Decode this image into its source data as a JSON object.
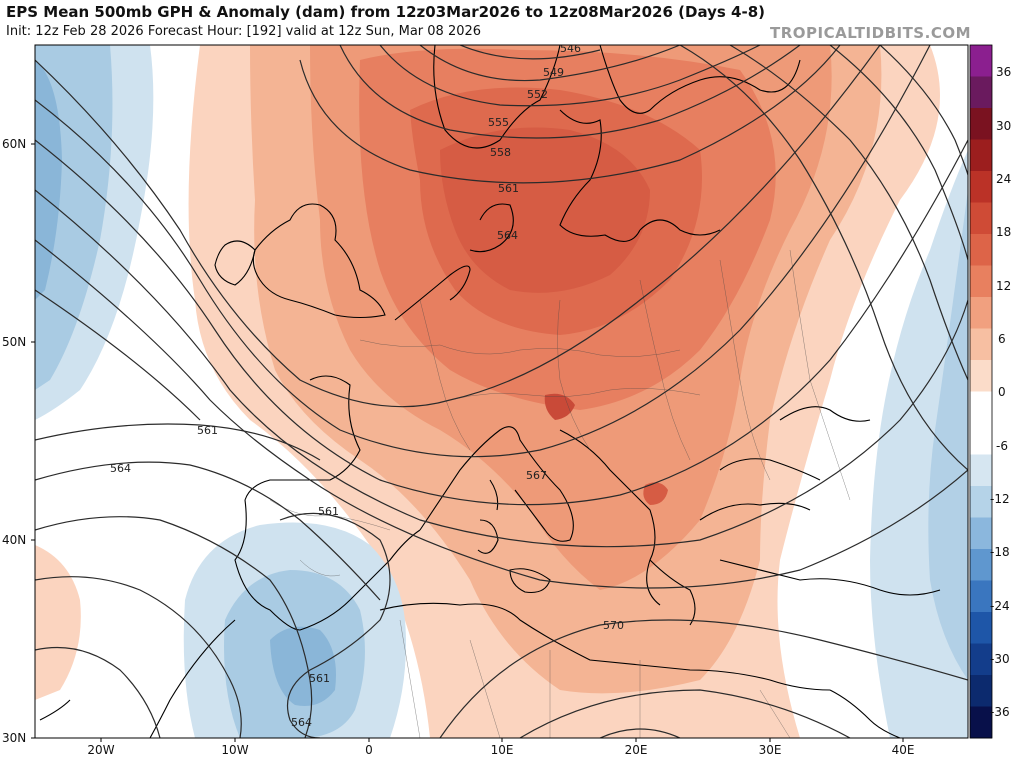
{
  "header": {
    "title": "EPS Mean 500mb GPH & Anomaly (dam) from 12z03Mar2026 to 12z08Mar2026 (Days 4-8)",
    "subtitle": "Init: 12z Feb 28 2026   Forecast Hour: [192]   valid at 12z Sun, Mar 08 2026",
    "brand": "TROPICALTIDBITS.COM"
  },
  "map": {
    "lat_labels": [
      "60N",
      "50N",
      "40N",
      "30N"
    ],
    "lon_labels": [
      "20W",
      "10W",
      "0",
      "10E",
      "20E",
      "30E",
      "40E"
    ],
    "contour_labels": [
      "546",
      "549",
      "552",
      "555",
      "558",
      "561",
      "564",
      "567",
      "570",
      "561",
      "564",
      "561",
      "561",
      "564"
    ]
  },
  "colorbar": {
    "ticks": [
      "36",
      "30",
      "24",
      "18",
      "12",
      "6",
      "0",
      "-6",
      "-12",
      "-18",
      "-24",
      "-30",
      "-36"
    ],
    "colors": [
      "#08104a",
      "#0c2a6e",
      "#133d8b",
      "#1e56a8",
      "#3a76bf",
      "#5f97cf",
      "#8bb7dd",
      "#b5d3e8",
      "#d6e6f1",
      "#ffffff",
      "#ffffff",
      "#fbdcc9",
      "#f7bfa2",
      "#f1a07f",
      "#e8805f",
      "#dd6448",
      "#cf4b36",
      "#bb3227",
      "#9c1e1e",
      "#7a1220",
      "#6a1a5e",
      "#8b1f8f"
    ]
  }
}
